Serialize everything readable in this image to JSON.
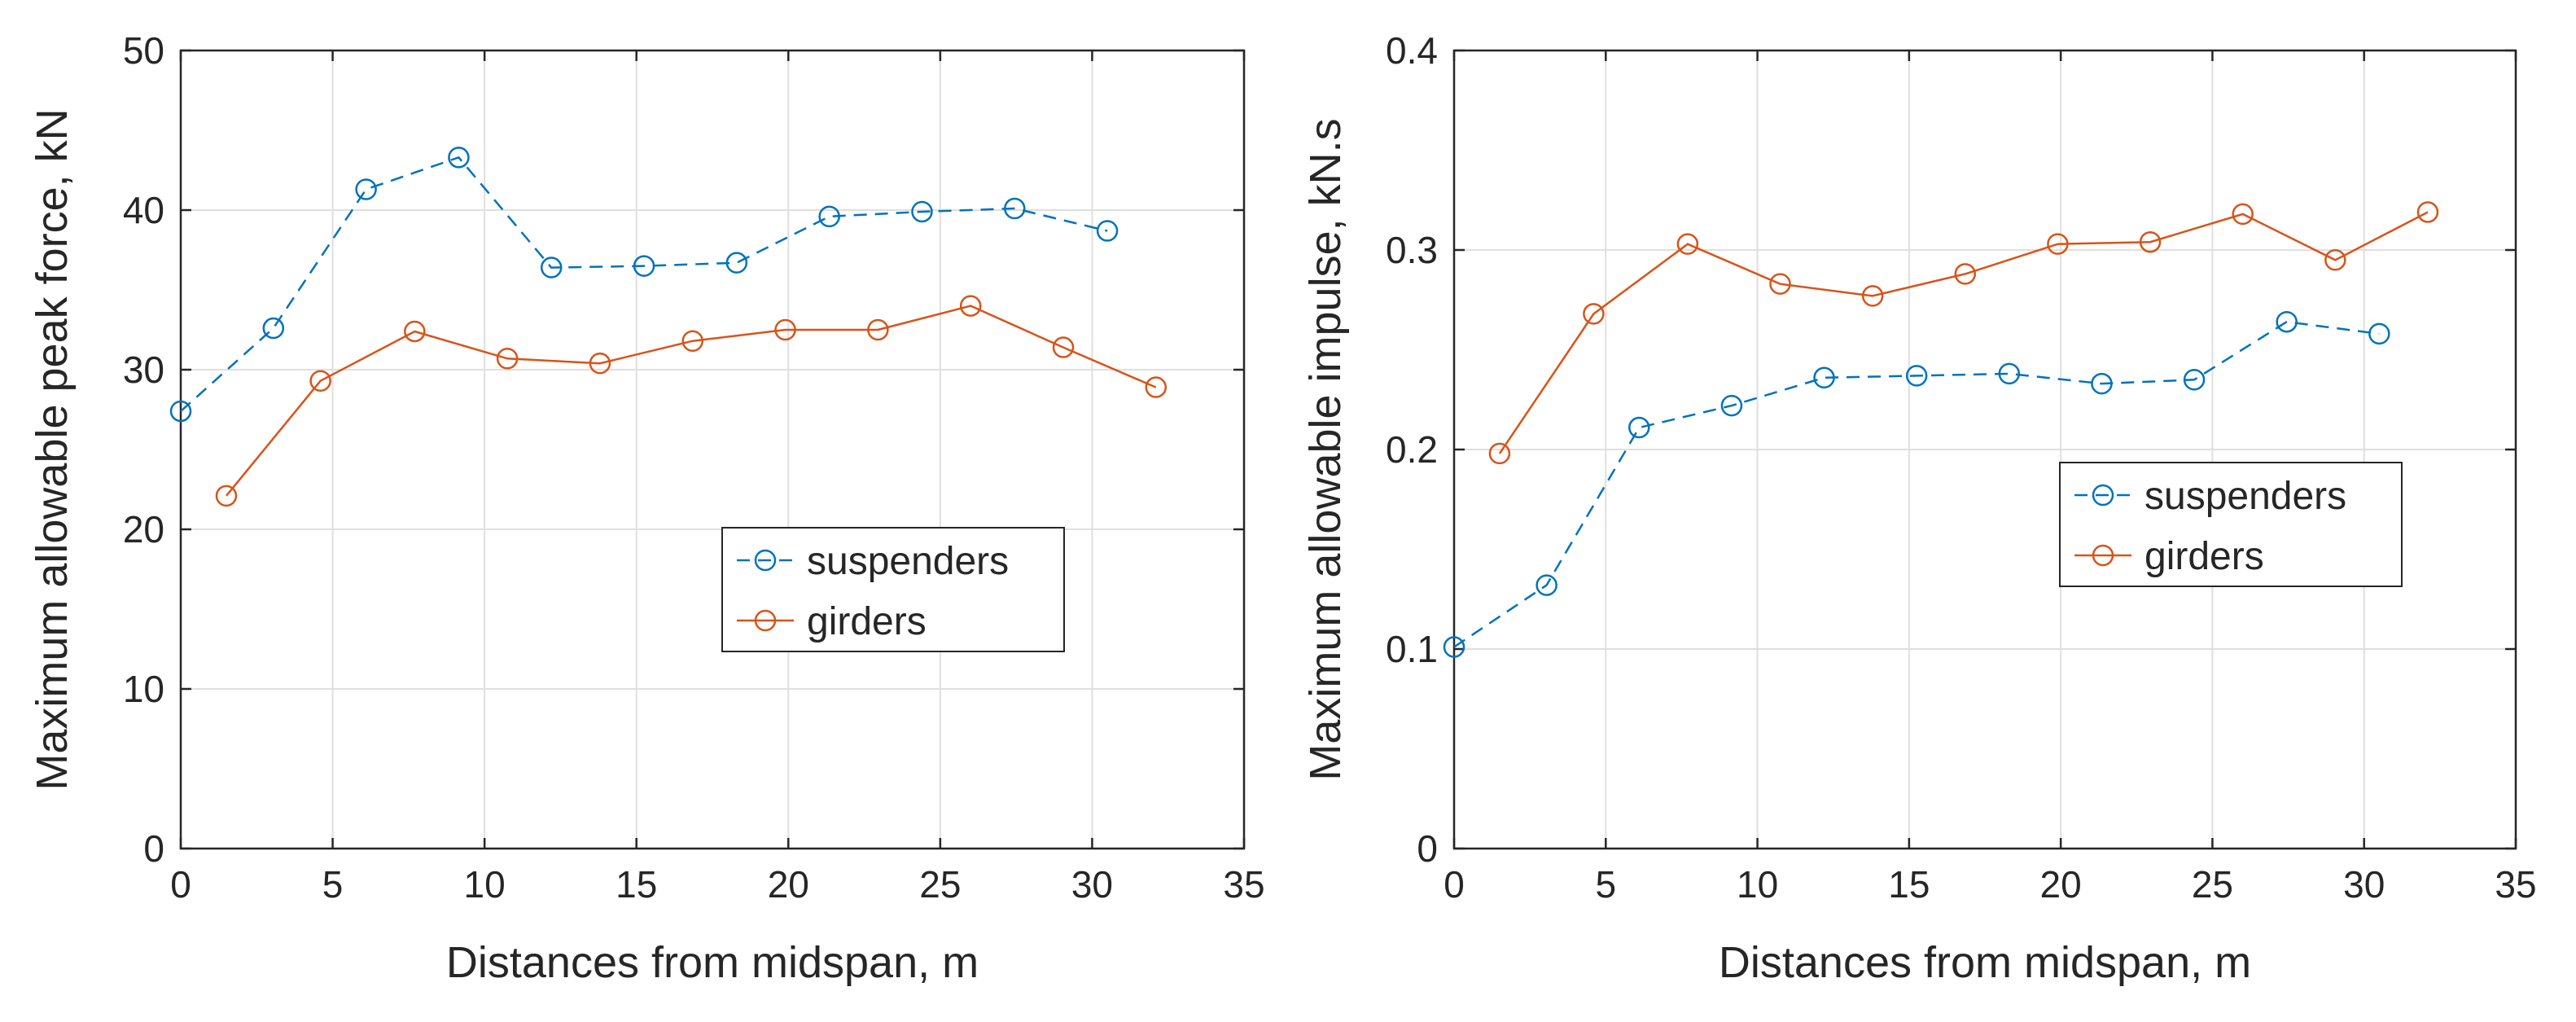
{
  "chart_data": [
    {
      "type": "line",
      "title": "",
      "xlabel": "Distances from midspan, m",
      "ylabel": "Maximum allowable peak force, kN",
      "xlim": [
        0,
        35
      ],
      "ylim": [
        0,
        50
      ],
      "xticks": [
        "0",
        "5",
        "10",
        "15",
        "20",
        "25",
        "30",
        "35"
      ],
      "yticks": [
        "0",
        "10",
        "20",
        "30",
        "40",
        "50"
      ],
      "grid": true,
      "legend_location": "middle-right",
      "series": [
        {
          "name": "suspenders",
          "color": "#0072BD",
          "line_style": "dashed",
          "marker": "circle",
          "x": [
            0,
            3.05,
            6.1,
            9.15,
            12.2,
            15.25,
            18.3,
            21.35,
            24.4,
            27.45,
            30.5
          ],
          "y": [
            27.4,
            32.6,
            41.3,
            43.3,
            36.4,
            36.5,
            36.7,
            39.6,
            39.9,
            40.1,
            38.7
          ]
        },
        {
          "name": "girders",
          "color": "#D95319",
          "line_style": "solid",
          "marker": "circle",
          "x": [
            1.5,
            4.6,
            7.7,
            10.75,
            13.8,
            16.85,
            19.9,
            22.95,
            26.0,
            29.05,
            32.1
          ],
          "y": [
            22.1,
            29.3,
            32.4,
            30.7,
            30.4,
            31.8,
            32.5,
            32.5,
            34.0,
            31.4,
            28.9
          ]
        }
      ]
    },
    {
      "type": "line",
      "title": "",
      "xlabel": "Distances from midspan, m",
      "ylabel": "Maximum allowable impulse, kN.s",
      "xlim": [
        0,
        35
      ],
      "ylim": [
        0,
        0.4
      ],
      "xticks": [
        "0",
        "5",
        "10",
        "15",
        "20",
        "25",
        "30",
        "35"
      ],
      "yticks": [
        "0",
        "0.1",
        "0.2",
        "0.3",
        "0.4"
      ],
      "grid": true,
      "legend_location": "middle-right",
      "series": [
        {
          "name": "suspenders",
          "color": "#0072BD",
          "line_style": "dashed",
          "marker": "circle",
          "x": [
            0,
            3.05,
            6.1,
            9.15,
            12.2,
            15.25,
            18.3,
            21.35,
            24.4,
            27.45,
            30.5
          ],
          "y": [
            0.101,
            0.132,
            0.211,
            0.222,
            0.236,
            0.237,
            0.238,
            0.233,
            0.235,
            0.264,
            0.258
          ]
        },
        {
          "name": "girders",
          "color": "#D95319",
          "line_style": "solid",
          "marker": "circle",
          "x": [
            1.5,
            4.6,
            7.7,
            10.75,
            13.8,
            16.85,
            19.9,
            22.95,
            26.0,
            29.05,
            32.1
          ],
          "y": [
            0.198,
            0.268,
            0.303,
            0.283,
            0.277,
            0.288,
            0.303,
            0.304,
            0.318,
            0.295,
            0.319
          ]
        }
      ]
    }
  ]
}
